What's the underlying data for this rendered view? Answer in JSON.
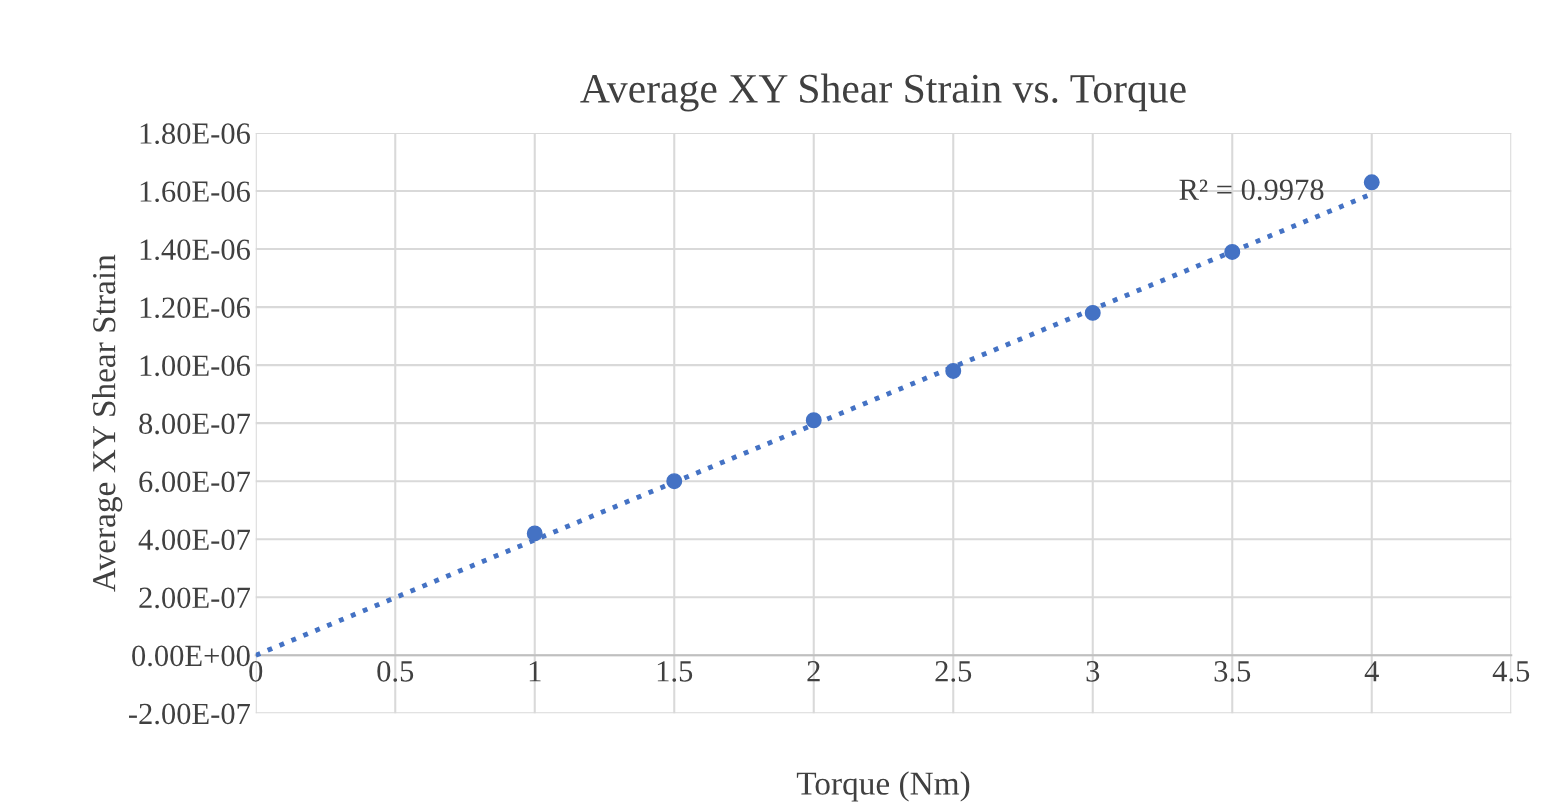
{
  "chart_data": {
    "type": "scatter",
    "title": "Average XY Shear Strain vs. Torque",
    "xlabel": "Torque (Nm)",
    "ylabel": "Average XY Shear Strain",
    "series": [
      {
        "color": "#4472c4",
        "marker": "circle",
        "x": [
          1,
          1.5,
          2,
          2.5,
          3,
          3.5,
          4
        ],
        "values": [
          4.2e-07,
          6e-07,
          8.1e-07,
          9.8e-07,
          1.18e-06,
          1.39e-06,
          1.63e-06
        ]
      },
      {
        "type": "line",
        "color": "#4472c4",
        "line_style": "dotted",
        "marker": "none",
        "x": [
          0,
          4
        ],
        "values": [
          0,
          1.59e-06
        ]
      }
    ],
    "annotations": [
      "R² = 0.9978"
    ],
    "xlim": [
      0,
      4.5
    ],
    "xticks": [
      0,
      0.5,
      1,
      1.5,
      2,
      2.5,
      3,
      3.5,
      4,
      4.5
    ],
    "ylim": [
      -2e-07,
      1.8e-06
    ],
    "yticks": [
      {
        "value": -2e-07,
        "label": "-2.00E-07"
      },
      {
        "value": 0,
        "label": "0.00E+00"
      },
      {
        "value": 2e-07,
        "label": "2.00E-07"
      },
      {
        "value": 4e-07,
        "label": "4.00E-07"
      },
      {
        "value": 6e-07,
        "label": "6.00E-07"
      },
      {
        "value": 8e-07,
        "label": "8.00E-07"
      },
      {
        "value": 1e-06,
        "label": "1.00E-06"
      },
      {
        "value": 1.2e-06,
        "label": "1.20E-06"
      },
      {
        "value": 1.4e-06,
        "label": "1.40E-06"
      },
      {
        "value": 1.6e-06,
        "label": "1.60E-06"
      },
      {
        "value": 1.8e-06,
        "label": "1.80E-06"
      }
    ],
    "grid": true,
    "legend": false
  }
}
